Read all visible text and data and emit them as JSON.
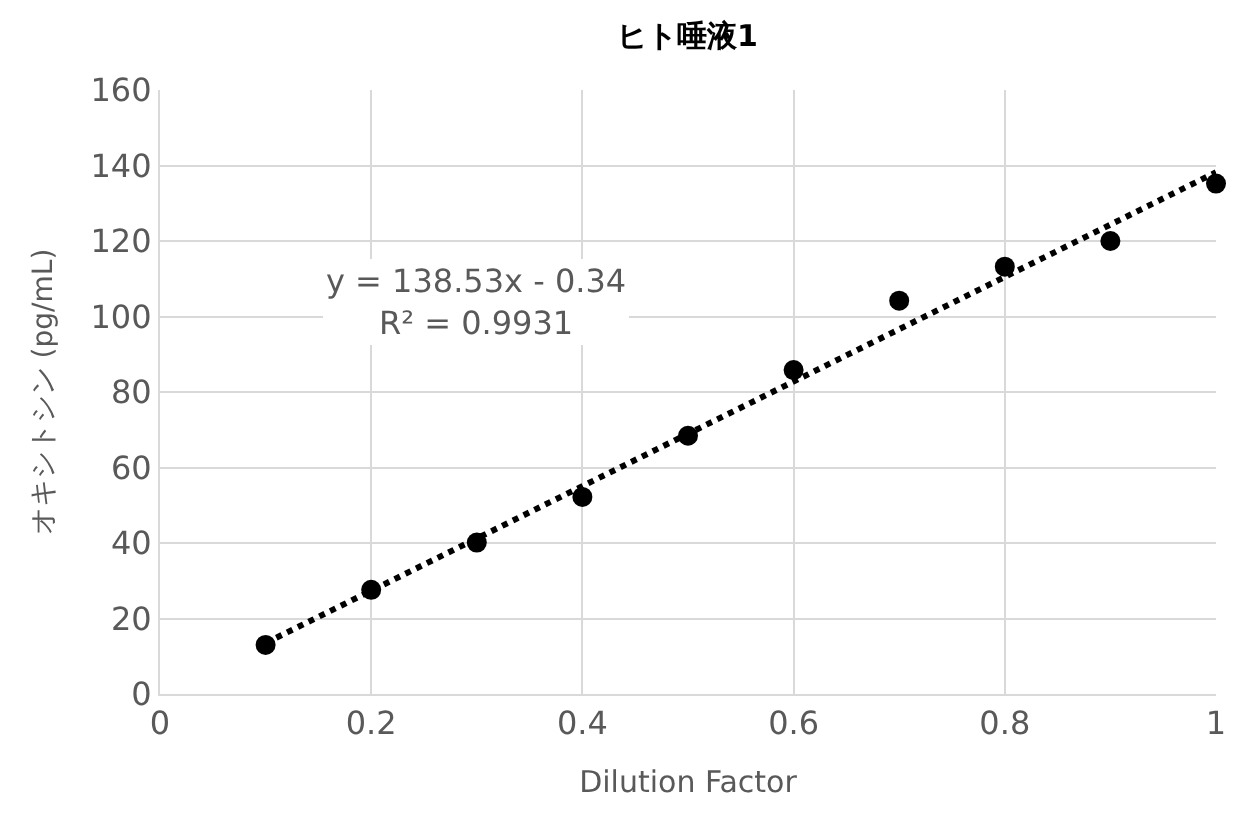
{
  "chart_data": {
    "type": "scatter",
    "title": "ヒト唾液1",
    "xlabel": "Dilution Factor",
    "ylabel": "オキシトシン (pg/mL)",
    "x": [
      0.1,
      0.2,
      0.3,
      0.4,
      0.5,
      0.6,
      0.7,
      0.8,
      0.9,
      1.0
    ],
    "series": [
      {
        "color": "#000000",
        "values": [
          13,
          27.6,
          40.1,
          52.2,
          68.4,
          85.8,
          104.2,
          113.2,
          120,
          135.2
        ],
        "marker": "circle"
      },
      {
        "type": "line",
        "color": "#000000",
        "x": [
          0.1,
          1.0
        ],
        "values": [
          13.5,
          138.2
        ],
        "line_style": "dotted",
        "marker": "none"
      }
    ],
    "annotations": [
      "y = 138.53x - 0.34\nR² = 0.9931"
    ],
    "xlim": [
      0,
      1
    ],
    "xticks": [
      0,
      0.2,
      0.4,
      0.6,
      0.8,
      1
    ],
    "ylim": [
      0,
      160
    ],
    "yticks": [
      0,
      20,
      40,
      60,
      80,
      100,
      120,
      140,
      160
    ],
    "grid": true
  }
}
